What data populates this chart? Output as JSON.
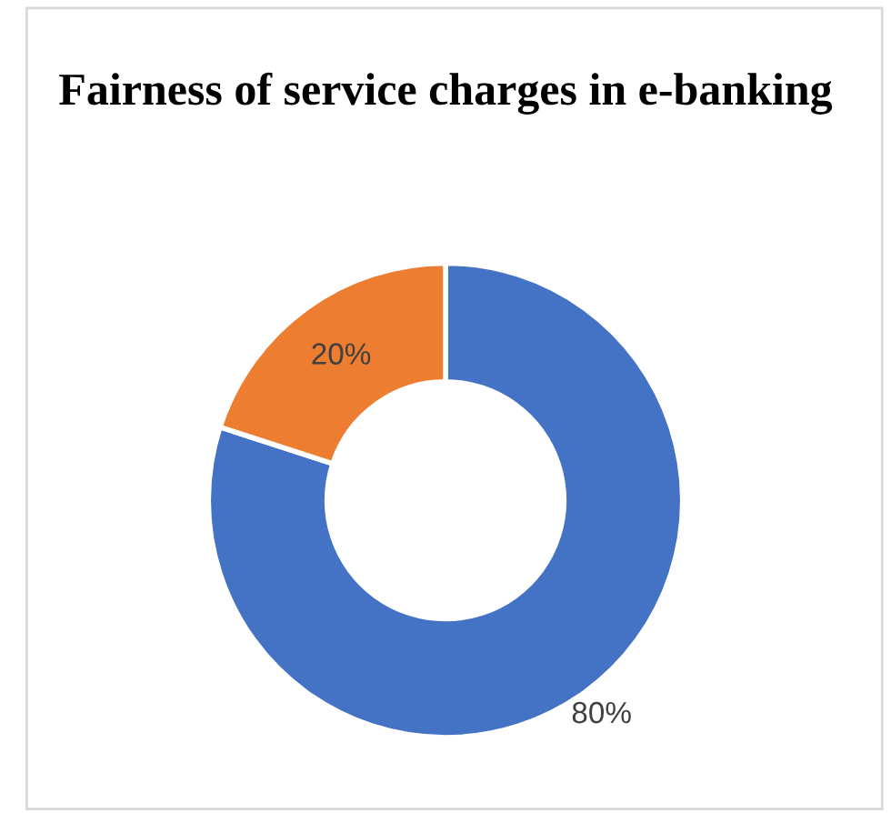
{
  "chart_data": {
    "type": "donut",
    "title": "Fairness of service charges in e-banking",
    "categories": [
      null,
      null
    ],
    "values": [
      80,
      20
    ],
    "colors": [
      "#4472c4",
      "#ed7d31"
    ],
    "value_labels": [
      "80%",
      "20%"
    ]
  }
}
